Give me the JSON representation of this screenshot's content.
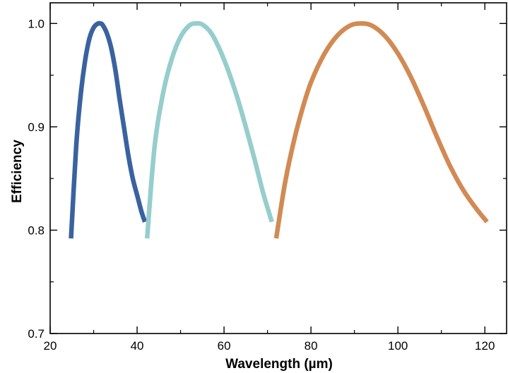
{
  "chart_data": {
    "type": "line",
    "title": "",
    "xlabel": "Wavelength (µm)",
    "ylabel": "Efficiency",
    "xlim": [
      20,
      125
    ],
    "ylim": [
      0.7,
      1.02
    ],
    "xticks_major": [
      20,
      40,
      60,
      80,
      100,
      120
    ],
    "xtick_labels": [
      "20",
      "40",
      "60",
      "80",
      "100",
      "120"
    ],
    "xticks_minor": [
      30,
      50,
      70,
      90,
      110
    ],
    "yticks_major": [
      0.7,
      0.8,
      0.9,
      1.0
    ],
    "ytick_labels": [
      "0.7",
      "0.8",
      "0.9",
      "1.0"
    ],
    "yticks_minor": [
      0.75,
      0.85,
      0.95
    ],
    "grid": false,
    "series": [
      {
        "color": "#3a62a0",
        "x": [
          24.8,
          26,
          27,
          28,
          29,
          30,
          31,
          31.5,
          32,
          33,
          34,
          35,
          36,
          37,
          38,
          39,
          40,
          41,
          41.8
        ],
        "y": [
          0.792,
          0.882,
          0.93,
          0.963,
          0.985,
          0.996,
          1.0,
          1.0,
          0.999,
          0.991,
          0.977,
          0.955,
          0.926,
          0.899,
          0.872,
          0.85,
          0.834,
          0.818,
          0.808
        ]
      },
      {
        "color": "#96cdcd",
        "x": [
          42.3,
          44,
          46,
          48,
          50,
          52,
          53.5,
          55,
          57,
          59,
          61,
          63,
          65,
          67,
          69,
          71
        ],
        "y": [
          0.792,
          0.88,
          0.933,
          0.966,
          0.987,
          0.998,
          1.0,
          0.999,
          0.991,
          0.975,
          0.954,
          0.929,
          0.9,
          0.869,
          0.836,
          0.808
        ]
      },
      {
        "color": "#d28a54",
        "x": [
          72,
          74,
          76,
          78,
          80,
          83,
          86,
          89,
          91.5,
          94,
          97,
          100,
          103,
          106,
          109,
          112,
          115,
          118,
          120.5
        ],
        "y": [
          0.792,
          0.845,
          0.885,
          0.917,
          0.943,
          0.97,
          0.988,
          0.998,
          1.0,
          0.998,
          0.988,
          0.971,
          0.948,
          0.92,
          0.89,
          0.862,
          0.839,
          0.821,
          0.808
        ]
      }
    ]
  }
}
